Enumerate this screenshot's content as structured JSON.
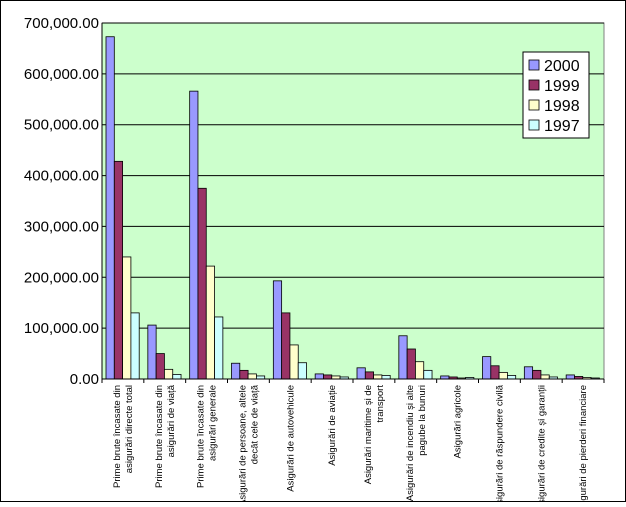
{
  "chart_data": {
    "type": "bar",
    "title": "",
    "xlabel": "",
    "ylabel": "",
    "ylim": [
      0,
      700000
    ],
    "yticks": [
      0,
      100000,
      200000,
      300000,
      400000,
      500000,
      600000,
      700000
    ],
    "ytick_labels": [
      "0.00",
      "100,000.00",
      "200,000.00",
      "300,000.00",
      "400,000.00",
      "500,000.00",
      "600,000.00",
      "700,000.00"
    ],
    "grid": true,
    "legend_position": "top-right",
    "plot_background": "#ccffcc",
    "categories": [
      [
        "Prime brute încasate din",
        "asigurări directe total"
      ],
      [
        "Prime brute încasate din",
        "asigurări de viață"
      ],
      [
        "Prime brute încasate din",
        "asigurări generale"
      ],
      [
        "Asigurări de persoane, altele",
        "decât cele de viață"
      ],
      [
        "Asigurări de autovehicule"
      ],
      [
        "Asigurări de aviație"
      ],
      [
        "Asigurări maritime și de",
        "transport"
      ],
      [
        "Asigurări de incendiu și alte",
        "pagube la bunuri"
      ],
      [
        "Asigurări agricole"
      ],
      [
        "Asigurări de răspundere civilă"
      ],
      [
        "Asigurări de credite și garanții"
      ],
      [
        "Asigurări de pierderi financiare"
      ]
    ],
    "series": [
      {
        "name": "2000",
        "color": "#9999ff",
        "values": [
          673000,
          106000,
          566000,
          31000,
          193000,
          10000,
          22000,
          85000,
          6000,
          44000,
          24000,
          8000
        ]
      },
      {
        "name": "1999",
        "color": "#993366",
        "values": [
          428000,
          50000,
          375000,
          17000,
          130000,
          8000,
          14000,
          59000,
          4000,
          26000,
          17000,
          5000
        ]
      },
      {
        "name": "1998",
        "color": "#ffffcc",
        "values": [
          240000,
          19000,
          222000,
          10000,
          67000,
          6000,
          8000,
          34000,
          2000,
          13000,
          8000,
          3000
        ]
      },
      {
        "name": "1997",
        "color": "#ccffff",
        "values": [
          130000,
          9000,
          122000,
          6000,
          32000,
          4000,
          7000,
          17000,
          3000,
          7000,
          4000,
          2000
        ]
      }
    ]
  }
}
